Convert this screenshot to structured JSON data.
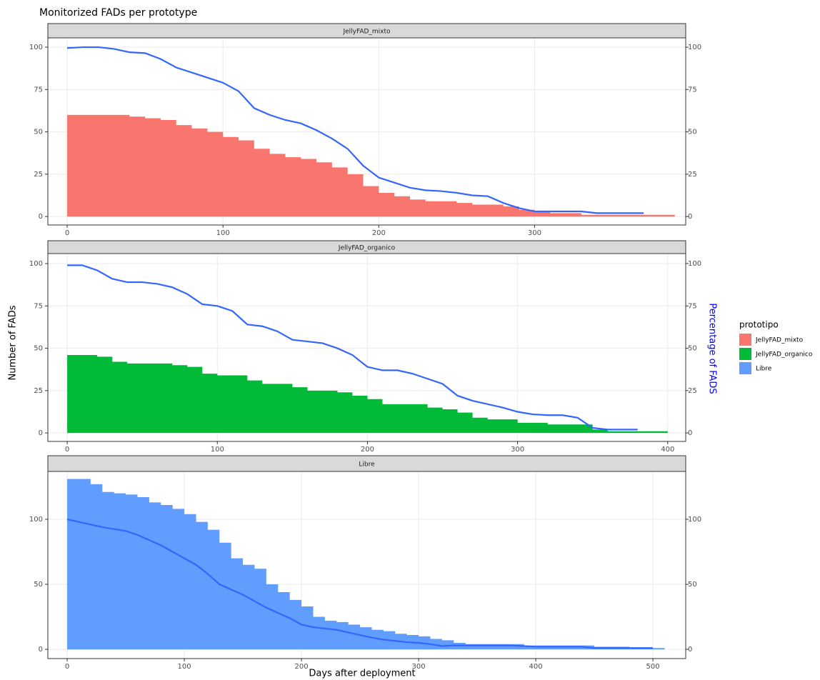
{
  "title": "Monitorized FADs per prototype",
  "xlabel": "Days after deployment",
  "ylabel": "Number of FADs",
  "y2label": "Percentage of FADS",
  "legend_title": "prototipo",
  "legend_position": "right",
  "chart_data": [
    {
      "type": "step-area",
      "facet": "JellyFAD_mixto",
      "grid": true,
      "xlim": [
        -12.4,
        397
      ],
      "ylim": [
        -5,
        105.5
      ],
      "y2lim": [
        -5,
        105.5
      ],
      "xticks": [
        0,
        100,
        200,
        300
      ],
      "yticks": [
        0,
        25,
        50,
        75,
        100
      ],
      "y2ticks": [
        0,
        25,
        50,
        75,
        100
      ],
      "x": [
        0,
        10,
        20,
        30,
        40,
        50,
        60,
        70,
        80,
        90,
        100,
        110,
        120,
        130,
        140,
        150,
        160,
        170,
        180,
        190,
        200,
        210,
        220,
        230,
        240,
        250,
        260,
        270,
        280,
        290,
        300,
        310,
        320,
        330,
        340,
        350,
        360,
        370,
        380
      ],
      "series": [
        {
          "name": "JellyFAD_mixto",
          "color": "#f8766d",
          "values": [
            60,
            60,
            60,
            60,
            59,
            58,
            57,
            54,
            52,
            50,
            47,
            45,
            40,
            37,
            35,
            34,
            32,
            29,
            25,
            18,
            14,
            12,
            10,
            9,
            9,
            8,
            7,
            7,
            6,
            4,
            3,
            2,
            2,
            1,
            1,
            1,
            1,
            1,
            1
          ]
        },
        {
          "color": "#3366ff",
          "axis": "y2",
          "values": [
            99.5,
            100,
            100,
            99,
            97,
            96.5,
            93,
            88,
            85,
            82,
            79,
            74,
            64,
            60,
            57,
            55,
            51,
            46,
            40,
            30,
            23,
            20,
            17,
            15.5,
            15,
            14,
            12.5,
            12,
            8,
            5,
            3,
            3,
            3,
            3,
            2,
            2,
            2,
            2,
            null
          ]
        }
      ]
    },
    {
      "type": "step-area",
      "facet": "JellyFAD_organico",
      "grid": true,
      "xlim": [
        -12.9,
        412
      ],
      "ylim": [
        -5,
        105.9
      ],
      "y2lim": [
        -5,
        105.9
      ],
      "xticks": [
        0,
        100,
        200,
        300,
        400
      ],
      "yticks": [
        0,
        25,
        50,
        75,
        100
      ],
      "y2ticks": [
        0,
        25,
        50,
        75,
        100
      ],
      "x": [
        0,
        10,
        20,
        30,
        40,
        50,
        60,
        70,
        80,
        90,
        100,
        110,
        120,
        130,
        140,
        150,
        160,
        170,
        180,
        190,
        200,
        210,
        220,
        230,
        240,
        250,
        260,
        270,
        280,
        290,
        300,
        310,
        320,
        330,
        340,
        350,
        360,
        370,
        380,
        390
      ],
      "series": [
        {
          "name": "JellyFAD_organico",
          "color": "#00ba38",
          "values": [
            46,
            46,
            45,
            42,
            41,
            41,
            41,
            40,
            39,
            35,
            34,
            34,
            31,
            29,
            29,
            27,
            25,
            25,
            24,
            22,
            20,
            17,
            17,
            17,
            15,
            14,
            12,
            9,
            8,
            8,
            6,
            6,
            5,
            5,
            5,
            2,
            1,
            1,
            1,
            1
          ]
        },
        {
          "color": "#3366ff",
          "axis": "y2",
          "values": [
            99,
            99,
            96,
            91,
            89,
            89,
            88,
            86,
            82,
            76,
            75,
            72,
            64,
            63,
            60,
            55,
            54,
            53,
            50,
            46,
            39,
            37,
            37,
            35,
            32,
            29,
            22,
            19,
            17,
            15,
            12.5,
            11,
            10.5,
            10.5,
            9,
            3,
            2,
            2,
            2,
            null
          ]
        }
      ]
    },
    {
      "type": "step-area",
      "facet": "Libre",
      "grid": true,
      "xlim": [
        -16.5,
        528
      ],
      "ylim": [
        -7.1,
        136.8
      ],
      "y2lim": [
        -7.1,
        136.8
      ],
      "xticks": [
        0,
        100,
        200,
        300,
        400,
        500
      ],
      "yticks": [
        0,
        50,
        100
      ],
      "y2ticks": [
        0,
        50,
        100
      ],
      "x": [
        0,
        10,
        20,
        30,
        40,
        50,
        60,
        70,
        80,
        90,
        100,
        110,
        120,
        130,
        140,
        150,
        160,
        170,
        180,
        190,
        200,
        210,
        220,
        230,
        240,
        250,
        260,
        270,
        280,
        290,
        300,
        310,
        320,
        330,
        340,
        350,
        360,
        370,
        380,
        390,
        400,
        410,
        420,
        430,
        440,
        450,
        460,
        470,
        480,
        490,
        500
      ],
      "series": [
        {
          "name": "Libre",
          "color": "#619cff",
          "values": [
            131,
            131,
            127,
            121,
            120,
            119,
            117,
            113,
            111,
            108,
            104,
            98,
            92,
            82,
            70,
            65,
            62,
            50,
            44,
            38,
            33,
            25,
            22,
            21,
            19,
            17,
            15,
            14,
            12,
            11,
            10,
            8,
            7,
            5,
            4,
            4,
            4,
            4,
            4,
            3,
            3,
            3,
            3,
            3,
            3,
            2,
            2,
            2,
            1,
            1,
            1
          ]
        },
        {
          "color": "#3366ff",
          "axis": "y2",
          "values": [
            100,
            98,
            96,
            94,
            92.5,
            91,
            88,
            84,
            80,
            75,
            70,
            65,
            58,
            50,
            46,
            42,
            37,
            32,
            28,
            24,
            19,
            17,
            16,
            15,
            13,
            11,
            9,
            7.5,
            6.5,
            5.5,
            5,
            4,
            2.5,
            3,
            3,
            3,
            3,
            3,
            3,
            2.5,
            2,
            2,
            2,
            2,
            2,
            1,
            1,
            1,
            1,
            1,
            1
          ]
        }
      ]
    }
  ]
}
